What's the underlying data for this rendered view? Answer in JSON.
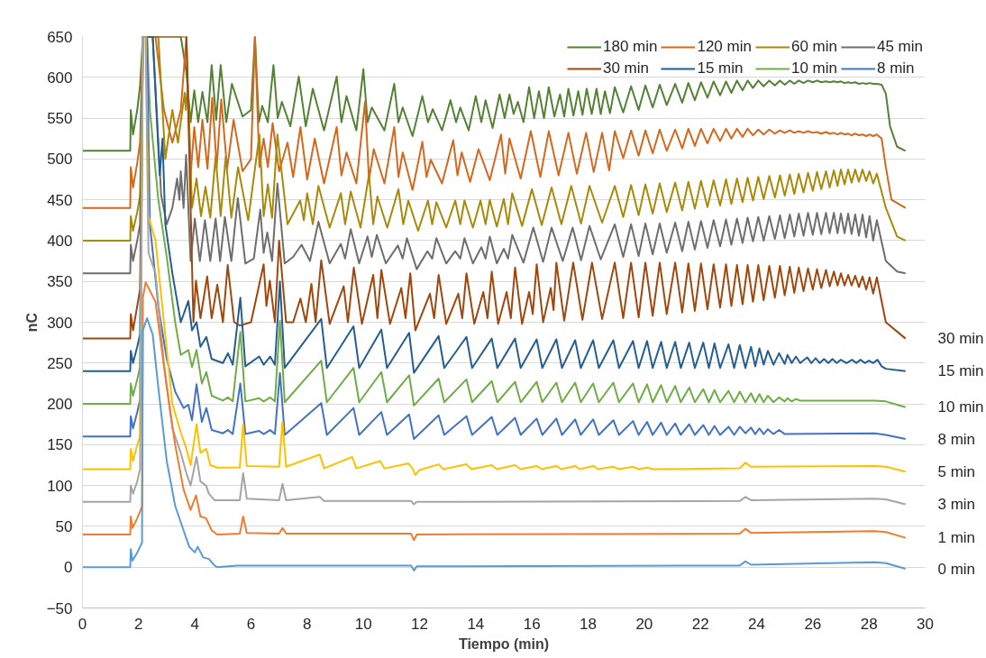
{
  "chart_data": {
    "type": "line",
    "xlabel": "Tiempo (min)",
    "ylabel": "nC",
    "xlim": [
      0,
      30
    ],
    "ylim": [
      -50,
      650
    ],
    "xticks": [
      0,
      2,
      4,
      6,
      8,
      10,
      12,
      14,
      16,
      18,
      20,
      22,
      24,
      26,
      28,
      30
    ],
    "yticks": [
      -50,
      0,
      50,
      100,
      150,
      200,
      250,
      300,
      350,
      400,
      450,
      500,
      550,
      600,
      650
    ],
    "grid": "y",
    "legend": "top right",
    "line_style": "solid",
    "marker": "none",
    "series": [
      {
        "name": "180 min",
        "color": "#548235",
        "x": [
          0,
          1.7,
          1.72,
          1.8,
          1.95,
          2.05,
          2.15,
          3.5,
          3.7,
          3.85,
          3.98,
          4.12,
          4.27,
          4.45,
          4.6,
          4.76,
          4.92,
          5.12,
          5.32,
          5.7,
          6.0,
          6.14,
          6.28,
          6.4,
          6.6,
          6.8,
          6.95,
          7.1,
          7.4,
          7.7,
          7.95,
          8.2,
          8.6,
          9.05,
          9.22,
          9.4,
          9.75,
          10.0,
          10.15,
          10.3,
          10.75,
          11.1,
          11.25,
          11.4,
          11.75,
          12.1,
          12.3,
          12.47,
          12.8,
          13.1,
          13.3,
          13.45,
          13.75,
          14.0,
          14.2,
          14.35,
          14.6,
          14.85,
          15.03,
          15.2,
          15.35,
          15.5,
          15.7,
          15.9,
          16.08,
          16.25,
          16.43,
          16.6,
          16.8,
          17.0,
          17.15,
          17.3,
          17.48,
          17.65,
          17.8,
          17.95,
          18.13,
          18.3,
          18.45,
          18.6,
          18.78,
          18.95,
          19.25,
          19.53,
          19.8,
          20.04,
          20.3,
          20.55,
          20.8,
          21.1,
          21.35,
          21.57,
          21.8,
          22.02,
          22.25,
          22.47,
          22.7,
          22.91,
          23.1,
          23.3,
          23.5,
          23.68,
          23.87,
          24.06,
          24.25,
          24.45,
          24.65,
          24.83,
          25.0,
          25.18,
          25.34,
          25.5,
          25.67,
          25.83,
          26.0,
          26.15,
          26.3,
          26.47,
          26.6,
          26.75,
          26.88,
          27.0,
          27.13,
          27.26,
          27.38,
          27.51,
          27.64,
          27.77,
          27.9,
          28.02,
          28.15,
          28.28,
          28.45,
          28.6,
          28.75,
          29.0,
          29.3
        ],
        "values": [
          510,
          510,
          560,
          530,
          560,
          590,
          650,
          650,
          606,
          545,
          584,
          545,
          582,
          545,
          615,
          548,
          615,
          545,
          592,
          552,
          560,
          650,
          545,
          565,
          545,
          615,
          550,
          570,
          540,
          601,
          540,
          586,
          535,
          601,
          545,
          577,
          535,
          610,
          545,
          563,
          535,
          592,
          545,
          563,
          528,
          577,
          545,
          561,
          535,
          572,
          545,
          563,
          535,
          577,
          545,
          572,
          538,
          579,
          550,
          579,
          555,
          570,
          545,
          588,
          550,
          583,
          550,
          588,
          552,
          579,
          552,
          586,
          553,
          583,
          554,
          586,
          555,
          586,
          555,
          583,
          556,
          588,
          557,
          589,
          560,
          590,
          563,
          591,
          566,
          592,
          569,
          593,
          572,
          594,
          575,
          595,
          578,
          595,
          581,
          596,
          584,
          596,
          587,
          596,
          589,
          596,
          590,
          596,
          591,
          596,
          592,
          596,
          593,
          596,
          594,
          596,
          594,
          595,
          594,
          595,
          594,
          595,
          593,
          594,
          593,
          594,
          592,
          593,
          592,
          593,
          592,
          592,
          591,
          580,
          540,
          515,
          510
        ]
      },
      {
        "name": "120 min",
        "color": "#d2691e",
        "x": [
          0,
          1.7,
          1.72,
          1.8,
          1.95,
          2.05,
          2.15,
          2.6,
          2.9,
          3.2,
          3.5,
          3.7,
          3.85,
          3.98,
          4.12,
          4.27,
          4.45,
          4.62,
          4.78,
          4.94,
          5.15,
          5.38,
          5.7,
          6.0,
          6.14,
          6.3,
          6.45,
          6.6,
          6.77,
          7.0,
          7.3,
          7.5,
          7.76,
          8.0,
          8.27,
          8.6,
          9.05,
          9.22,
          9.4,
          9.75,
          10.06,
          10.2,
          10.37,
          10.75,
          11.1,
          11.25,
          11.4,
          11.75,
          12.1,
          12.25,
          12.4,
          12.8,
          13.2,
          13.35,
          13.5,
          13.8,
          14.1,
          14.5,
          14.9,
          15.05,
          15.2,
          15.6,
          15.96,
          16.3,
          16.6,
          16.95,
          17.3,
          17.6,
          17.93,
          18.2,
          18.5,
          18.75,
          18.95,
          19.25,
          19.53,
          19.8,
          20.04,
          20.3,
          20.55,
          20.8,
          21.1,
          21.35,
          21.57,
          21.8,
          22.02,
          22.25,
          22.47,
          22.7,
          22.91,
          23.1,
          23.3,
          23.5,
          23.68,
          23.87,
          24.06,
          24.25,
          24.45,
          24.65,
          24.83,
          25.0,
          25.18,
          25.34,
          25.5,
          25.67,
          25.83,
          26.0,
          26.15,
          26.3,
          26.47,
          26.6,
          26.75,
          26.88,
          27.0,
          27.13,
          27.26,
          27.38,
          27.51,
          27.64,
          27.77,
          27.9,
          28.02,
          28.15,
          28.28,
          28.45,
          28.6,
          28.8,
          29.3
        ],
        "values": [
          440,
          440,
          490,
          465,
          495,
          520,
          650,
          650,
          560,
          520,
          560,
          650,
          480,
          539,
          490,
          548,
          488,
          575,
          490,
          573,
          488,
          548,
          485,
          500,
          650,
          490,
          525,
          490,
          544,
          485,
          520,
          478,
          539,
          475,
          525,
          470,
          539,
          480,
          508,
          470,
          570,
          475,
          512,
          470,
          539,
          478,
          508,
          462,
          521,
          478,
          499,
          470,
          523,
          480,
          508,
          472,
          512,
          474,
          530,
          482,
          525,
          476,
          534,
          478,
          534,
          480,
          532,
          482,
          532,
          484,
          532,
          486,
          534,
          501,
          535,
          504,
          535,
          507,
          536,
          510,
          536,
          513,
          537,
          516,
          537,
          519,
          537,
          522,
          537,
          525,
          537,
          527,
          537,
          529,
          536,
          530,
          536,
          531,
          535,
          532,
          535,
          532,
          534,
          532,
          534,
          532,
          533,
          531,
          533,
          531,
          532,
          530,
          532,
          530,
          531,
          529,
          531,
          529,
          530,
          528,
          530,
          528,
          530,
          525,
          490,
          450,
          440
        ]
      },
      {
        "name": "60 min",
        "color": "#a88a0b",
        "x": [
          0,
          1.7,
          1.72,
          1.8,
          1.95,
          2.05,
          2.15,
          2.7,
          2.95,
          3.2,
          3.4,
          3.64,
          3.68,
          3.75,
          3.9,
          4.06,
          4.22,
          4.38,
          4.55,
          4.74,
          4.92,
          5.1,
          5.3,
          5.54,
          5.9,
          6.3,
          6.45,
          6.6,
          6.75,
          6.94,
          7.3,
          7.75,
          7.88,
          8.0,
          8.2,
          8.4,
          8.8,
          9.2,
          9.35,
          9.55,
          9.9,
          10.2,
          10.35,
          10.5,
          10.85,
          11.25,
          11.42,
          11.6,
          11.95,
          12.3,
          12.45,
          12.6,
          12.95,
          13.27,
          13.45,
          13.6,
          13.9,
          14.17,
          14.35,
          14.5,
          14.75,
          15.0,
          15.15,
          15.3,
          15.65,
          16.0,
          16.35,
          16.7,
          17.05,
          17.4,
          17.75,
          18.05,
          18.5,
          18.95,
          19.25,
          19.53,
          19.8,
          20.04,
          20.3,
          20.55,
          20.8,
          21.1,
          21.35,
          21.57,
          21.8,
          22.02,
          22.25,
          22.47,
          22.7,
          22.91,
          23.1,
          23.3,
          23.5,
          23.68,
          23.87,
          24.06,
          24.25,
          24.45,
          24.65,
          24.83,
          25.0,
          25.18,
          25.34,
          25.5,
          25.67,
          25.83,
          26.0,
          26.15,
          26.3,
          26.47,
          26.6,
          26.75,
          26.88,
          27.0,
          27.13,
          27.26,
          27.38,
          27.51,
          27.64,
          27.77,
          27.9,
          28.02,
          28.15,
          28.28,
          28.6,
          29.0,
          29.3
        ],
        "values": [
          400,
          400,
          430,
          412,
          435,
          455,
          650,
          650,
          500,
          560,
          520,
          581,
          560,
          590,
          440,
          476,
          430,
          466,
          428,
          503,
          430,
          503,
          428,
          490,
          425,
          530,
          430,
          469,
          428,
          530,
          420,
          449,
          425,
          458,
          420,
          467,
          416,
          458,
          420,
          460,
          416,
          481,
          420,
          454,
          416,
          463,
          420,
          449,
          412,
          449,
          420,
          447,
          416,
          449,
          420,
          449,
          416,
          449,
          420,
          450,
          417,
          451,
          420,
          458,
          418,
          463,
          419,
          465,
          420,
          467,
          421,
          467,
          422,
          467,
          429,
          468,
          431,
          469,
          433,
          470,
          435,
          471,
          437,
          472,
          439,
          473,
          441,
          474,
          443,
          475,
          445,
          476,
          447,
          477,
          449,
          478,
          451,
          479,
          453,
          480,
          455,
          481,
          457,
          482,
          459,
          483,
          461,
          484,
          463,
          485,
          465,
          486,
          467,
          487,
          469,
          487,
          471,
          487,
          472,
          487,
          473,
          485,
          470,
          482,
          440,
          405,
          400
        ]
      },
      {
        "name": "45 min",
        "color": "#6e6e6e",
        "x": [
          0,
          1.7,
          1.72,
          1.8,
          1.95,
          2.05,
          2.15,
          2.5,
          2.8,
          3.0,
          3.2,
          3.37,
          3.45,
          3.5,
          3.6,
          3.69,
          3.85,
          4.0,
          4.18,
          4.36,
          4.55,
          4.74,
          4.9,
          5.07,
          5.3,
          5.53,
          5.8,
          6.1,
          6.33,
          6.45,
          6.58,
          6.75,
          6.94,
          7.2,
          7.5,
          7.8,
          8.1,
          8.4,
          8.8,
          9.2,
          9.35,
          9.55,
          9.85,
          10.15,
          10.3,
          10.48,
          10.8,
          11.23,
          11.4,
          11.55,
          11.9,
          12.28,
          12.45,
          12.6,
          12.95,
          13.27,
          13.45,
          13.6,
          13.9,
          14.2,
          14.35,
          14.5,
          14.75,
          15.0,
          15.15,
          15.3,
          15.7,
          16.05,
          16.4,
          16.7,
          17.1,
          17.45,
          17.75,
          18.05,
          18.45,
          18.95,
          19.25,
          19.53,
          19.8,
          20.04,
          20.3,
          20.55,
          20.8,
          21.1,
          21.35,
          21.57,
          21.8,
          22.02,
          22.25,
          22.47,
          22.7,
          22.91,
          23.1,
          23.3,
          23.5,
          23.68,
          23.87,
          24.06,
          24.25,
          24.45,
          24.65,
          24.83,
          25.0,
          25.18,
          25.34,
          25.5,
          25.67,
          25.83,
          26.0,
          26.15,
          26.3,
          26.47,
          26.6,
          26.75,
          26.88,
          27.0,
          27.13,
          27.26,
          27.38,
          27.51,
          27.64,
          27.77,
          27.9,
          28.02,
          28.15,
          28.28,
          28.6,
          29.0,
          29.3
        ],
        "values": [
          360,
          360,
          395,
          375,
          400,
          420,
          650,
          650,
          456,
          420,
          440,
          476,
          450,
          485,
          440,
          505,
          375,
          427,
          375,
          425,
          375,
          427,
          375,
          429,
          375,
          452,
          372,
          378,
          438,
          385,
          410,
          375,
          470,
          372,
          380,
          395,
          375,
          423,
          372,
          396,
          378,
          414,
          372,
          405,
          380,
          407,
          372,
          394,
          378,
          403,
          365,
          387,
          378,
          403,
          372,
          387,
          378,
          403,
          372,
          392,
          378,
          405,
          372,
          390,
          378,
          407,
          373,
          416,
          374,
          416,
          375,
          416,
          376,
          418,
          377,
          420,
          380,
          420,
          381,
          421,
          383,
          421,
          385,
          422,
          387,
          423,
          389,
          424,
          391,
          425,
          393,
          426,
          395,
          427,
          397,
          428,
          399,
          429,
          400,
          430,
          402,
          431,
          403,
          432,
          405,
          433,
          406,
          434,
          407,
          434,
          408,
          434,
          409,
          434,
          409,
          433,
          409,
          433,
          408,
          432,
          406,
          432,
          404,
          430,
          400,
          425,
          375,
          362,
          360
        ]
      },
      {
        "name": "30 min",
        "color": "#9e480e",
        "x": [
          0,
          1.7,
          1.72,
          1.8,
          1.95,
          2.05,
          2.15,
          3.7,
          3.95,
          4.04,
          4.2,
          4.44,
          4.6,
          4.8,
          5.0,
          5.17,
          5.4,
          5.6,
          6.0,
          6.45,
          6.55,
          6.67,
          6.85,
          7.0,
          7.25,
          7.5,
          7.76,
          7.95,
          8.15,
          8.3,
          8.5,
          8.8,
          9.3,
          9.45,
          9.66,
          9.95,
          10.35,
          10.5,
          10.64,
          10.95,
          11.35,
          11.5,
          11.67,
          11.85,
          12.37,
          12.52,
          12.68,
          12.95,
          13.38,
          13.52,
          13.67,
          13.95,
          14.27,
          14.42,
          14.57,
          14.8,
          15.1,
          15.25,
          15.4,
          15.65,
          15.9,
          16.03,
          16.17,
          16.4,
          16.67,
          16.77,
          16.87,
          17.15,
          17.47,
          17.8,
          18.14,
          18.5,
          18.95,
          19.25,
          19.53,
          19.8,
          20.04,
          20.3,
          20.55,
          20.8,
          21.1,
          21.35,
          21.57,
          21.8,
          22.02,
          22.25,
          22.47,
          22.7,
          22.91,
          23.1,
          23.3,
          23.5,
          23.68,
          23.87,
          24.06,
          24.25,
          24.45,
          24.65,
          24.83,
          25.0,
          25.18,
          25.34,
          25.5,
          25.67,
          25.83,
          26.0,
          26.15,
          26.3,
          26.47,
          26.6,
          26.75,
          26.88,
          27.0,
          27.13,
          27.26,
          27.38,
          27.51,
          27.64,
          27.77,
          27.9,
          28.02,
          28.15,
          28.28,
          28.6,
          29.3
        ],
        "values": [
          280,
          280,
          310,
          290,
          320,
          340,
          650,
          650,
          300,
          351,
          305,
          356,
          305,
          346,
          300,
          370,
          300,
          296,
          300,
          371,
          320,
          351,
          300,
          400,
          300,
          300,
          329,
          300,
          347,
          300,
          376,
          298,
          344,
          300,
          367,
          298,
          358,
          305,
          364,
          298,
          342,
          305,
          360,
          290,
          335,
          305,
          358,
          298,
          335,
          305,
          360,
          298,
          337,
          305,
          362,
          298,
          337,
          305,
          367,
          298,
          337,
          310,
          371,
          300,
          342,
          315,
          373,
          302,
          373,
          303,
          373,
          304,
          373,
          305,
          373,
          306,
          373,
          308,
          373,
          310,
          373,
          312,
          372,
          314,
          372,
          316,
          371,
          318,
          371,
          320,
          370,
          322,
          370,
          325,
          370,
          327,
          369,
          330,
          369,
          333,
          368,
          336,
          367,
          338,
          366,
          340,
          365,
          342,
          364,
          344,
          362,
          345,
          360,
          345,
          358,
          345,
          357,
          343,
          356,
          340,
          355,
          335,
          355,
          300,
          280
        ]
      },
      {
        "name": "15 min",
        "color": "#255e91",
        "x": [
          0,
          1.7,
          1.72,
          1.8,
          1.95,
          2.05,
          2.15,
          2.5,
          2.75,
          2.85,
          2.95,
          3.2,
          3.5,
          3.77,
          3.9,
          4.06,
          4.2,
          4.41,
          4.6,
          5.0,
          5.18,
          5.35,
          5.62,
          5.8,
          6.29,
          6.45,
          6.68,
          6.85,
          7.03,
          7.2,
          8.5,
          8.7,
          9.65,
          9.85,
          10.64,
          10.84,
          11.63,
          11.8,
          12.68,
          12.88,
          13.67,
          13.87,
          14.57,
          14.77,
          15.4,
          15.6,
          16.17,
          16.37,
          16.87,
          17.07,
          17.54,
          17.74,
          18.18,
          18.38,
          18.9,
          19.1,
          19.6,
          19.8,
          20.1,
          20.3,
          20.6,
          20.8,
          21.1,
          21.3,
          21.6,
          21.8,
          22.1,
          22.3,
          22.5,
          22.7,
          23.0,
          23.2,
          23.4,
          23.6,
          23.8,
          23.95,
          24.1,
          24.25,
          24.4,
          24.6,
          24.8,
          25.0,
          25.1,
          25.25,
          25.4,
          25.55,
          25.8,
          25.95,
          26.1,
          26.25,
          26.4,
          26.55,
          26.7,
          26.85,
          27.0,
          27.2,
          27.4,
          27.55,
          27.7,
          27.85,
          28.0,
          28.15,
          28.3,
          28.45,
          28.6,
          29.3
        ],
        "values": [
          240,
          240,
          265,
          250,
          270,
          285,
          650,
          650,
          480,
          525,
          420,
          360,
          300,
          326,
          290,
          300,
          270,
          282,
          255,
          250,
          262,
          248,
          330,
          246,
          258,
          248,
          258,
          248,
          350,
          244,
          304,
          244,
          295,
          244,
          291,
          244,
          287,
          238,
          283,
          244,
          282,
          244,
          280,
          244,
          280,
          244,
          279,
          244,
          279,
          244,
          278,
          244,
          278,
          244,
          278,
          244,
          277,
          244,
          277,
          244,
          276,
          244,
          276,
          244,
          275,
          244,
          275,
          244,
          274,
          244,
          273,
          244,
          272,
          244,
          270,
          246,
          268,
          248,
          265,
          248,
          262,
          249,
          260,
          250,
          258,
          250,
          257,
          250,
          256,
          250,
          255,
          250,
          255,
          250,
          254,
          250,
          254,
          250,
          254,
          250,
          253,
          250,
          254,
          246,
          243,
          240
        ]
      },
      {
        "name": "10 min",
        "color": "#70ad47",
        "x": [
          0,
          1.7,
          1.72,
          1.8,
          1.95,
          2.05,
          2.15,
          2.3,
          2.4,
          2.7,
          3.0,
          3.3,
          3.5,
          3.77,
          3.9,
          4.06,
          4.25,
          4.41,
          4.6,
          5.0,
          5.18,
          5.35,
          5.62,
          5.8,
          6.29,
          6.45,
          6.68,
          6.85,
          7.03,
          7.2,
          8.5,
          8.7,
          9.65,
          9.85,
          10.64,
          10.84,
          11.63,
          11.8,
          12.68,
          12.88,
          13.67,
          13.87,
          14.57,
          14.77,
          15.4,
          15.6,
          16.17,
          16.37,
          16.87,
          17.07,
          17.54,
          17.74,
          18.18,
          18.38,
          18.9,
          19.1,
          19.6,
          19.8,
          20.1,
          20.3,
          20.6,
          20.8,
          21.1,
          21.3,
          21.6,
          21.8,
          22.1,
          22.3,
          22.5,
          22.7,
          23.0,
          23.2,
          23.4,
          23.6,
          23.8,
          23.95,
          24.1,
          24.25,
          24.4,
          24.6,
          24.8,
          25.0,
          25.1,
          25.25,
          25.4,
          25.55,
          28.2,
          28.6,
          29.3
        ],
        "values": [
          200,
          200,
          225,
          210,
          230,
          245,
          650,
          650,
          560,
          450,
          380,
          300,
          260,
          266,
          245,
          266,
          225,
          239,
          210,
          204,
          208,
          203,
          288,
          203,
          207,
          203,
          208,
          203,
          302,
          202,
          253,
          202,
          244,
          202,
          239,
          202,
          235,
          198,
          231,
          202,
          230,
          202,
          228,
          202,
          227,
          202,
          227,
          202,
          226,
          202,
          226,
          202,
          225,
          202,
          226,
          202,
          225,
          202,
          224,
          202,
          223,
          202,
          222,
          202,
          220,
          202,
          218,
          202,
          217,
          202,
          216,
          202,
          215,
          202,
          213,
          202,
          212,
          202,
          210,
          202,
          208,
          203,
          207,
          203,
          206,
          204,
          204,
          203,
          196
        ]
      },
      {
        "name": "8 min",
        "color": "#4472c4",
        "x": [
          0,
          1.7,
          1.72,
          1.8,
          1.95,
          2.05,
          2.15,
          2.3,
          2.4,
          2.7,
          3.0,
          3.3,
          3.6,
          3.77,
          3.9,
          4.06,
          4.25,
          4.41,
          4.6,
          5.0,
          5.18,
          5.35,
          5.62,
          5.8,
          6.29,
          6.45,
          6.68,
          6.85,
          7.03,
          7.2,
          8.5,
          8.7,
          9.65,
          9.85,
          10.64,
          10.84,
          11.63,
          11.8,
          12.68,
          12.88,
          13.67,
          13.87,
          14.57,
          14.77,
          15.4,
          15.6,
          16.17,
          16.37,
          16.87,
          17.07,
          17.54,
          17.74,
          18.18,
          18.38,
          18.9,
          19.1,
          19.6,
          19.8,
          20.1,
          20.3,
          20.6,
          20.8,
          21.1,
          21.3,
          21.6,
          21.8,
          22.1,
          22.3,
          22.5,
          22.7,
          23.0,
          23.2,
          23.4,
          23.6,
          23.8,
          23.95,
          24.1,
          24.25,
          24.4,
          24.6,
          24.8,
          25.0,
          28.2,
          28.6,
          29.3
        ],
        "values": [
          160,
          160,
          185,
          170,
          190,
          205,
          650,
          650,
          420,
          320,
          255,
          215,
          195,
          199,
          180,
          224,
          178,
          195,
          168,
          164,
          168,
          163,
          225,
          163,
          167,
          163,
          168,
          163,
          238,
          162,
          201,
          162,
          195,
          162,
          190,
          162,
          187,
          157,
          186,
          162,
          185,
          162,
          184,
          162,
          183,
          162,
          182,
          162,
          182,
          162,
          181,
          162,
          181,
          162,
          180,
          162,
          179,
          162,
          178,
          162,
          177,
          162,
          176,
          162,
          175,
          162,
          174,
          162,
          173,
          162,
          172,
          162,
          172,
          164,
          171,
          163,
          170,
          163,
          169,
          163,
          168,
          163,
          164,
          162,
          157
        ]
      },
      {
        "color": "#ffc000",
        "x": [
          0,
          1.7,
          1.72,
          1.8,
          1.95,
          2.05,
          2.15,
          2.25,
          2.35,
          2.6,
          2.9,
          3.2,
          3.5,
          3.7,
          3.85,
          4.06,
          4.2,
          4.41,
          4.55,
          4.8,
          5.6,
          5.72,
          5.85,
          7.0,
          7.12,
          7.25,
          8.45,
          8.6,
          9.6,
          9.75,
          10.6,
          10.75,
          11.6,
          11.75,
          11.85,
          12.0,
          12.68,
          12.85,
          13.67,
          13.85,
          14.57,
          14.75,
          15.4,
          15.6,
          16.17,
          16.35,
          16.87,
          17.05,
          17.54,
          17.7,
          18.18,
          18.35,
          18.9,
          19.1,
          19.6,
          19.8,
          20.1,
          20.3,
          23.4,
          23.6,
          23.8,
          28.2,
          28.6,
          29.3
        ],
        "values": [
          120,
          120,
          145,
          130,
          150,
          160,
          650,
          650,
          430,
          400,
          300,
          200,
          165,
          145,
          125,
          175,
          140,
          145,
          125,
          122,
          122,
          175,
          124,
          123,
          178,
          123,
          138,
          121,
          135,
          121,
          130,
          121,
          127,
          121,
          113,
          119,
          126,
          120,
          126,
          120,
          125,
          120,
          125,
          120,
          124,
          120,
          124,
          120,
          124,
          120,
          124,
          120,
          123,
          120,
          123,
          120,
          122,
          120,
          121,
          128,
          123,
          124,
          123,
          117
        ]
      },
      {
        "color": "#a5a5a5",
        "x": [
          0,
          1.7,
          1.72,
          1.8,
          1.95,
          2.05,
          2.15,
          2.25,
          2.35,
          2.6,
          2.9,
          3.2,
          3.5,
          3.7,
          3.85,
          4.06,
          4.2,
          4.4,
          4.5,
          4.7,
          5.6,
          5.72,
          5.85,
          7.0,
          7.12,
          7.25,
          8.45,
          8.6,
          11.7,
          11.8,
          11.9,
          23.4,
          23.6,
          23.8,
          28.2,
          28.6,
          29.3
        ],
        "values": [
          80,
          80,
          100,
          90,
          105,
          120,
          650,
          650,
          385,
          360,
          250,
          170,
          140,
          115,
          100,
          135,
          105,
          100,
          90,
          82,
          82,
          115,
          84,
          82,
          102,
          82,
          86,
          81,
          81,
          77,
          80,
          81,
          86,
          82,
          84,
          83,
          77
        ]
      },
      {
        "color": "#ed7d31",
        "x": [
          0,
          1.7,
          1.72,
          1.78,
          1.95,
          2.05,
          2.12,
          2.15,
          2.25,
          2.6,
          3.0,
          3.3,
          3.6,
          3.85,
          4.04,
          4.2,
          4.4,
          4.6,
          4.8,
          5.6,
          5.72,
          5.85,
          7.0,
          7.12,
          7.25,
          11.7,
          11.8,
          11.9,
          23.4,
          23.6,
          23.8,
          28.2,
          28.6,
          29.3
        ],
        "values": [
          40,
          40,
          62,
          48,
          60,
          68,
          75,
          330,
          349,
          325,
          220,
          150,
          95,
          70,
          88,
          62,
          60,
          45,
          40,
          41,
          62,
          42,
          41,
          48,
          41,
          41,
          33,
          40,
          41,
          47,
          42,
          44,
          43,
          36
        ]
      },
      {
        "color": "#5b9bd5",
        "x": [
          0,
          1.7,
          1.72,
          1.78,
          1.95,
          2.05,
          2.12,
          2.15,
          2.3,
          2.5,
          2.7,
          3.0,
          3.3,
          3.6,
          3.8,
          4.0,
          4.1,
          4.3,
          4.5,
          4.7,
          4.8,
          5.5,
          11.7,
          11.8,
          11.9,
          23.4,
          23.6,
          23.8,
          28.2,
          28.6,
          29.3
        ],
        "values": [
          0,
          0,
          22,
          8,
          18,
          25,
          30,
          290,
          305,
          285,
          220,
          130,
          75,
          45,
          25,
          18,
          25,
          12,
          10,
          2,
          0,
          2,
          2,
          -4,
          1,
          2,
          7,
          3,
          6,
          5,
          -2
        ]
      }
    ],
    "annotations": [
      "30 min",
      "15 min",
      "10 min",
      "8 min",
      "5 min",
      "3 min",
      "1 min",
      "0 min"
    ]
  }
}
